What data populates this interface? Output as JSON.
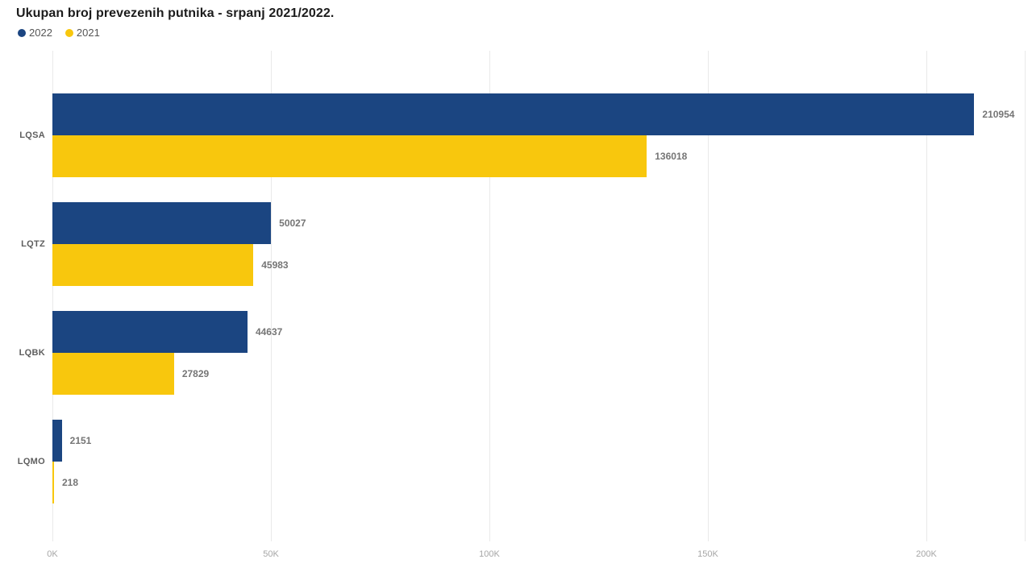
{
  "header": {
    "title": "Ukupan broj prevezenih putnika - srpanj 2021/2022."
  },
  "chart_data": {
    "type": "bar",
    "orientation": "horizontal",
    "title": "Ukupan broj prevezenih putnika - srpanj 2021/2022.",
    "categories": [
      "LQSA",
      "LQTZ",
      "LQBK",
      "LQMO"
    ],
    "series": [
      {
        "name": "2022",
        "color": "#1B4581",
        "values": [
          210954,
          50027,
          44637,
          2151
        ],
        "value_labels": [
          "210954",
          "50027",
          "44637",
          "2151"
        ]
      },
      {
        "name": "2021",
        "color": "#F8C70D",
        "values": [
          136018,
          45983,
          27829,
          218
        ],
        "value_labels": [
          "136018",
          "45983",
          "27829",
          "218"
        ]
      }
    ],
    "xlabel": "",
    "ylabel": "",
    "xlim": [
      0,
      222500
    ],
    "x_ticks": [
      {
        "value": 0,
        "label": "0K"
      },
      {
        "value": 50000,
        "label": "50K"
      },
      {
        "value": 100000,
        "label": "100K"
      },
      {
        "value": 150000,
        "label": "150K"
      },
      {
        "value": 200000,
        "label": "200K"
      }
    ],
    "grid": true,
    "legend_position": "top-left",
    "label_color": "#757575",
    "gridline_color": "#e9e9e9"
  }
}
